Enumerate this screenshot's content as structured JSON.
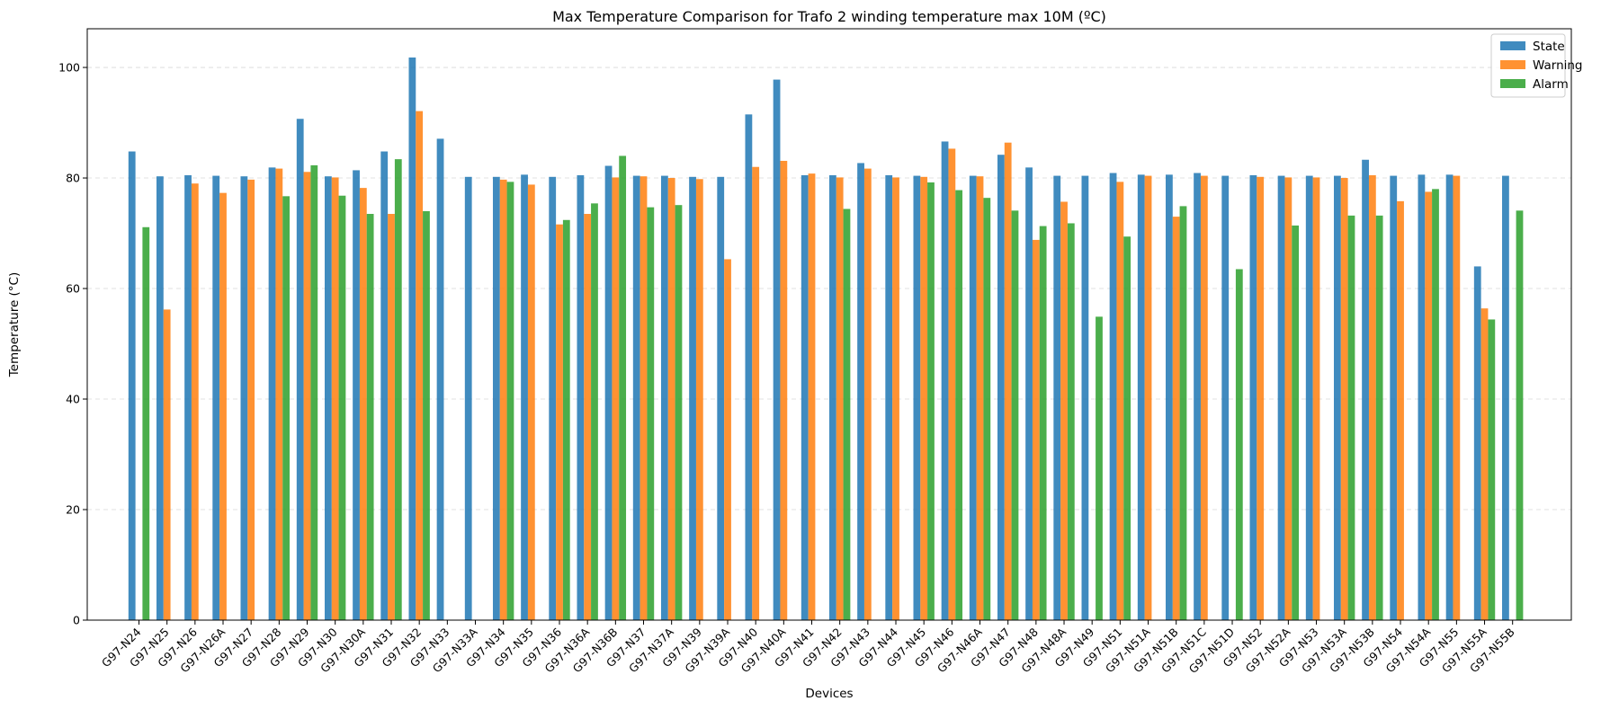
{
  "chart_data": {
    "type": "bar",
    "title": "Max Temperature Comparison for Trafo 2 winding temperature max 10M (ºC)",
    "xlabel": "Devices",
    "ylabel": "Temperature (°C)",
    "ylim": [
      0,
      107
    ],
    "yticks": [
      0,
      20,
      40,
      60,
      80,
      100
    ],
    "grid": "y-dashed",
    "legend": "top-right",
    "categories": [
      "G97-N24",
      "G97-N25",
      "G97-N26",
      "G97-N26A",
      "G97-N27",
      "G97-N28",
      "G97-N29",
      "G97-N30",
      "G97-N30A",
      "G97-N31",
      "G97-N32",
      "G97-N33",
      "G97-N33A",
      "G97-N34",
      "G97-N35",
      "G97-N36",
      "G97-N36A",
      "G97-N36B",
      "G97-N37",
      "G97-N37A",
      "G97-N39",
      "G97-N39A",
      "G97-N40",
      "G97-N40A",
      "G97-N41",
      "G97-N42",
      "G97-N43",
      "G97-N44",
      "G97-N45",
      "G97-N46",
      "G97-N46A",
      "G97-N47",
      "G97-N48",
      "G97-N48A",
      "G97-N49",
      "G97-N51",
      "G97-N51A",
      "G97-N51B",
      "G97-N51C",
      "G97-N51D",
      "G97-N52",
      "G97-N52A",
      "G97-N53",
      "G97-N53A",
      "G97-N53B",
      "G97-N54",
      "G97-N54A",
      "G97-N55",
      "G97-N55A",
      "G97-N55B"
    ],
    "series": [
      {
        "name": "State",
        "color": "#1f77b4",
        "values": [
          84.8,
          80.3,
          80.5,
          80.4,
          80.3,
          81.9,
          90.7,
          80.3,
          81.4,
          84.8,
          101.8,
          87.1,
          80.2,
          80.2,
          80.6,
          80.2,
          80.5,
          82.2,
          80.4,
          80.4,
          80.2,
          80.2,
          91.5,
          97.8,
          80.5,
          80.5,
          82.7,
          80.5,
          80.4,
          86.6,
          80.4,
          84.2,
          81.9,
          80.4,
          80.4,
          80.9,
          80.6,
          80.6,
          80.9,
          80.4,
          80.5,
          80.4,
          80.4,
          80.4,
          83.3,
          80.4,
          80.6,
          80.6,
          64.0,
          80.4
        ]
      },
      {
        "name": "Warning",
        "color": "#ff7f0e",
        "values": [
          null,
          56.2,
          79.0,
          77.3,
          79.7,
          81.7,
          81.1,
          80.1,
          78.2,
          73.5,
          92.1,
          null,
          null,
          79.7,
          78.8,
          71.6,
          73.5,
          80.1,
          80.3,
          80.0,
          79.8,
          65.3,
          82.0,
          83.1,
          80.8,
          80.1,
          81.7,
          80.1,
          80.2,
          85.3,
          80.3,
          86.4,
          68.8,
          75.7,
          null,
          79.3,
          80.4,
          73.0,
          80.4,
          null,
          80.2,
          80.1,
          80.1,
          80.0,
          80.5,
          75.8,
          77.5,
          80.4,
          56.4,
          null
        ]
      },
      {
        "name": "Alarm",
        "color": "#2ca02c",
        "values": [
          71.1,
          null,
          null,
          null,
          null,
          76.7,
          82.3,
          76.8,
          73.5,
          83.4,
          74.0,
          null,
          null,
          79.3,
          null,
          72.4,
          75.4,
          84.0,
          74.7,
          75.1,
          null,
          null,
          null,
          null,
          null,
          74.4,
          null,
          null,
          79.2,
          77.8,
          76.4,
          74.1,
          71.3,
          71.8,
          54.9,
          69.4,
          null,
          74.9,
          null,
          63.5,
          null,
          71.4,
          null,
          73.2,
          73.2,
          null,
          78.0,
          null,
          54.4,
          74.1
        ]
      }
    ]
  }
}
